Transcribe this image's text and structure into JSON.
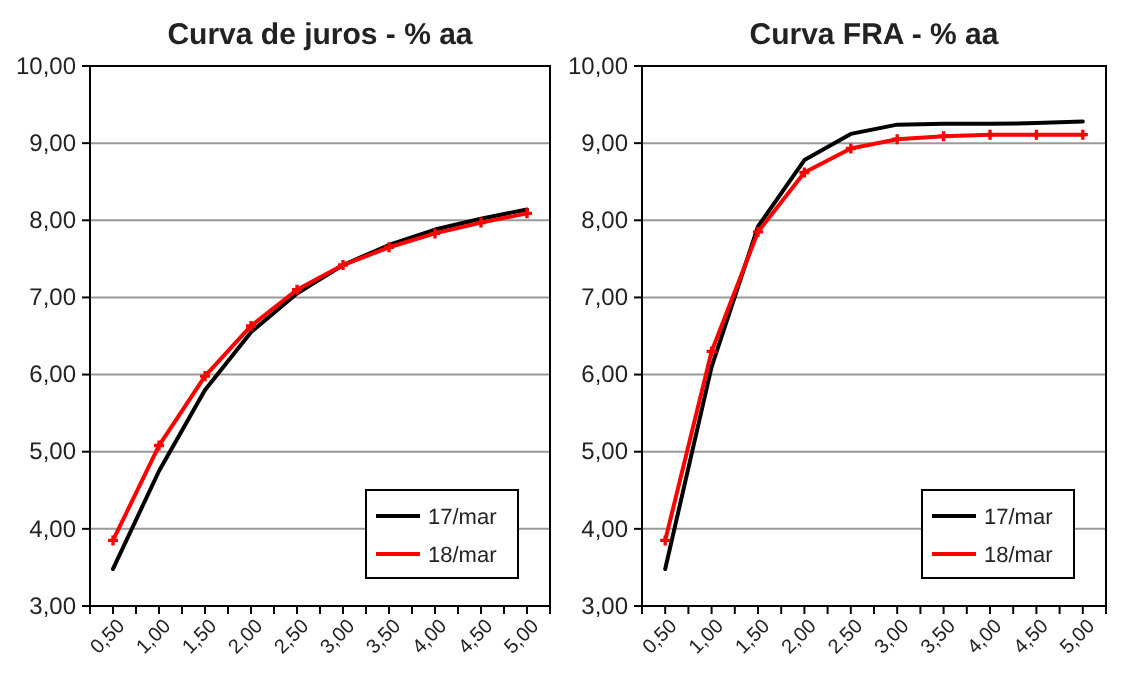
{
  "chart_data": [
    {
      "type": "line",
      "title": "Curva de juros - % aa",
      "categories": [
        "0,50",
        "1,00",
        "1,50",
        "2,00",
        "2,50",
        "3,00",
        "3,50",
        "4,00",
        "4,50",
        "5,00"
      ],
      "series": [
        {
          "name": "17/mar",
          "color": "#000000",
          "marker": "none",
          "values": [
            3.48,
            4.75,
            5.8,
            6.55,
            7.05,
            7.42,
            7.68,
            7.88,
            8.02,
            8.14
          ]
        },
        {
          "name": "18/mar",
          "color": "#ff0000",
          "marker": "cross",
          "values": [
            3.85,
            5.08,
            5.98,
            6.63,
            7.1,
            7.42,
            7.65,
            7.83,
            7.97,
            8.09
          ]
        }
      ],
      "ylim": [
        3,
        10
      ],
      "yticks": [
        {
          "value": 3,
          "label": "3,00"
        },
        {
          "value": 4,
          "label": "4,00"
        },
        {
          "value": 5,
          "label": "5,00"
        },
        {
          "value": 6,
          "label": "6,00"
        },
        {
          "value": 7,
          "label": "7,00"
        },
        {
          "value": 8,
          "label": "8,00"
        },
        {
          "value": 9,
          "label": "9,00"
        },
        {
          "value": 10,
          "label": "10,00"
        }
      ],
      "grid": "y",
      "legend": "bottom right"
    },
    {
      "type": "line",
      "title": "Curva FRA - % aa",
      "categories": [
        "0,50",
        "1,00",
        "1,50",
        "2,00",
        "2,50",
        "3,00",
        "3,50",
        "4,00",
        "4,50",
        "5,00"
      ],
      "series": [
        {
          "name": "17/mar",
          "color": "#000000",
          "marker": "none",
          "values": [
            3.48,
            6.1,
            7.92,
            8.78,
            9.12,
            9.24,
            9.25,
            9.25,
            9.26,
            9.28
          ]
        },
        {
          "name": "18/mar",
          "color": "#ff0000",
          "marker": "cross",
          "values": [
            3.85,
            6.3,
            7.85,
            8.62,
            8.93,
            9.05,
            9.09,
            9.11,
            9.11,
            9.11
          ]
        }
      ],
      "ylim": [
        3,
        10
      ],
      "yticks": [
        {
          "value": 3,
          "label": "3,00"
        },
        {
          "value": 4,
          "label": "4,00"
        },
        {
          "value": 5,
          "label": "5,00"
        },
        {
          "value": 6,
          "label": "6,00"
        },
        {
          "value": 7,
          "label": "7,00"
        },
        {
          "value": 8,
          "label": "8,00"
        },
        {
          "value": 9,
          "label": "9,00"
        },
        {
          "value": 10,
          "label": "10,00"
        }
      ],
      "grid": "y",
      "legend": "bottom right"
    }
  ]
}
